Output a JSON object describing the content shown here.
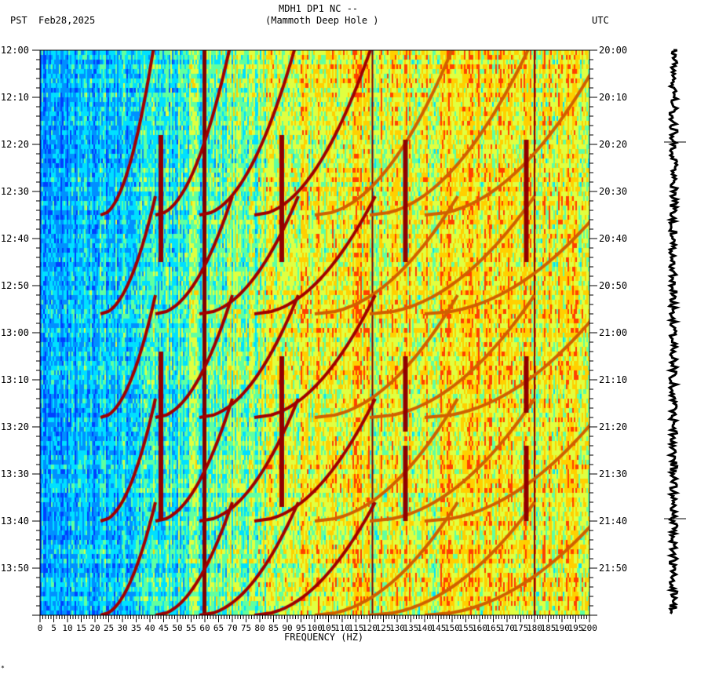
{
  "chart_data": {
    "type": "heatmap",
    "title": "MDH1 DP1 NC --",
    "subtitle": "(Mammoth Deep Hole )",
    "left_timezone": "PST",
    "date": "Feb28,2025",
    "right_timezone": "UTC",
    "xlabel": "FREQUENCY (HZ)",
    "xlim": [
      0,
      200
    ],
    "x_ticks": [
      "0",
      "5",
      "10",
      "15",
      "20",
      "25",
      "30",
      "35",
      "40",
      "45",
      "50",
      "55",
      "60",
      "65",
      "70",
      "75",
      "80",
      "85",
      "90",
      "95",
      "100",
      "105",
      "110",
      "115",
      "120",
      "125",
      "130",
      "135",
      "140",
      "145",
      "150",
      "155",
      "160",
      "165",
      "170",
      "175",
      "180",
      "185",
      "190",
      "195",
      "200"
    ],
    "y_range_minutes": [
      0,
      120
    ],
    "y_ticks_left": [
      "12:00",
      "12:10",
      "12:20",
      "12:30",
      "12:40",
      "12:50",
      "13:00",
      "13:10",
      "13:20",
      "13:30",
      "13:40",
      "13:50"
    ],
    "y_ticks_right": [
      "20:00",
      "20:10",
      "20:20",
      "20:30",
      "20:40",
      "20:50",
      "21:00",
      "21:10",
      "21:20",
      "21:30",
      "21:40",
      "21:50"
    ],
    "steady_lines_hz": [
      60,
      121,
      180
    ],
    "intermittent_lines": [
      {
        "hz": 44,
        "start_min": 18,
        "end_min": 45
      },
      {
        "hz": 44,
        "start_min": 64,
        "end_min": 100
      },
      {
        "hz": 88,
        "start_min": 18,
        "end_min": 45
      },
      {
        "hz": 88,
        "start_min": 65,
        "end_min": 97
      },
      {
        "hz": 133,
        "start_min": 19,
        "end_min": 45
      },
      {
        "hz": 133,
        "start_min": 65,
        "end_min": 81
      },
      {
        "hz": 133,
        "start_min": 84,
        "end_min": 100
      },
      {
        "hz": 177,
        "start_min": 19,
        "end_min": 45
      },
      {
        "hz": 177,
        "start_min": 65,
        "end_min": 77
      },
      {
        "hz": 177,
        "start_min": 84,
        "end_min": 100
      }
    ],
    "sweep_cycle_end_minutes": [
      1,
      35,
      56,
      78,
      100,
      120
    ],
    "colormap": [
      "#0040ff",
      "#0090ff",
      "#00e0ff",
      "#60ffa0",
      "#e0ff40",
      "#ffd000",
      "#ff4000",
      "#c00000",
      "#800000"
    ],
    "footer_mark": "*"
  }
}
